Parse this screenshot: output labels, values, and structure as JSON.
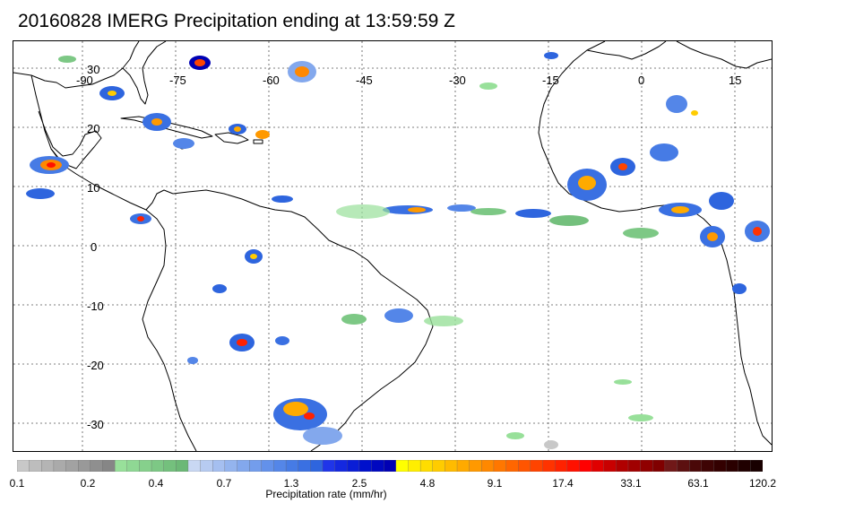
{
  "title": "20160828 IMERG Precipitation ending at 13:59:59 Z",
  "map": {
    "lon_ticks": [
      "-90",
      "-75",
      "-60",
      "-45",
      "-30",
      "-15",
      "0",
      "15"
    ],
    "lat_ticks": [
      "30",
      "20",
      "10",
      "0",
      "-10",
      "-20",
      "-30"
    ],
    "gridline_style": "dotted",
    "coastline_color": "#000000"
  },
  "colorbar": {
    "title": "Precipitation rate (mm/hr)",
    "tick_labels": [
      "0.1",
      "0.2",
      "0.4",
      "0.7",
      "1.3",
      "2.5",
      "4.8",
      "9.1",
      "17.4",
      "33.1",
      "63.1",
      "120.2"
    ],
    "segments": [
      "#c8c8c8",
      "#bdbdbd",
      "#b4b4b4",
      "#aaaaaa",
      "#a2a2a2",
      "#999999",
      "#8f8f8f",
      "#868686",
      "#98e09a",
      "#8fd894",
      "#86d08c",
      "#7dc885",
      "#74c07d",
      "#6cb876",
      "#c9d8f3",
      "#b7cbf1",
      "#a5bff0",
      "#94b4ee",
      "#83a8ed",
      "#739dec",
      "#6391ea",
      "#5486e8",
      "#467be5",
      "#3a70e2",
      "#2e65de",
      "#1f35e9",
      "#1428e0",
      "#0a1dd6",
      "#0010cc",
      "#0008c0",
      "#0000b4",
      "#ffff00",
      "#ffee00",
      "#ffdd00",
      "#ffcc00",
      "#ffbb00",
      "#ffaa00",
      "#ff9900",
      "#ff8800",
      "#ff7700",
      "#ff6600",
      "#ff5500",
      "#ff4400",
      "#ff3300",
      "#ff2200",
      "#ff1100",
      "#ff0000",
      "#e00000",
      "#c80000",
      "#b00000",
      "#a00000",
      "#900000",
      "#800000",
      "#701818",
      "#5c1010",
      "#4a0808",
      "#3e0404",
      "#330000",
      "#2a0000",
      "#200000",
      "#180000"
    ]
  }
}
